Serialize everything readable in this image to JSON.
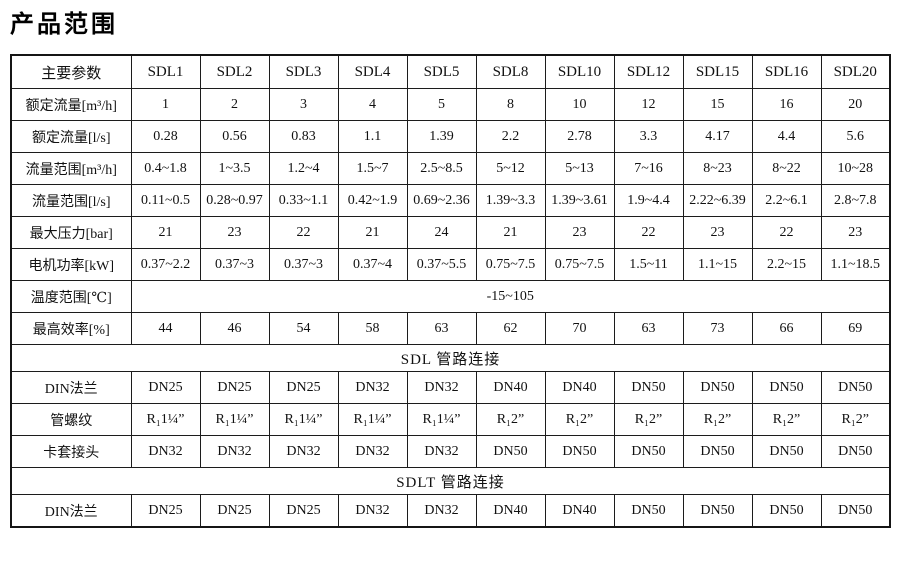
{
  "page_title": "产品范围",
  "table": {
    "rows": [
      {
        "type": "header",
        "label": "主要参数",
        "values": [
          "SDL1",
          "SDL2",
          "SDL3",
          "SDL4",
          "SDL5",
          "SDL8",
          "SDL10",
          "SDL12",
          "SDL15",
          "SDL16",
          "SDL20"
        ]
      },
      {
        "type": "data",
        "label": "额定流量[m³/h]",
        "values": [
          "1",
          "2",
          "3",
          "4",
          "5",
          "8",
          "10",
          "12",
          "15",
          "16",
          "20"
        ]
      },
      {
        "type": "data",
        "label": "额定流量[l/s]",
        "values": [
          "0.28",
          "0.56",
          "0.83",
          "1.1",
          "1.39",
          "2.2",
          "2.78",
          "3.3",
          "4.17",
          "4.4",
          "5.6"
        ]
      },
      {
        "type": "data",
        "label": "流量范围[m³/h]",
        "values": [
          "0.4~1.8",
          "1~3.5",
          "1.2~4",
          "1.5~7",
          "2.5~8.5",
          "5~12",
          "5~13",
          "7~16",
          "8~23",
          "8~22",
          "10~28"
        ]
      },
      {
        "type": "data",
        "label": "流量范围[l/s]",
        "values": [
          "0.11~0.5",
          "0.28~0.97",
          "0.33~1.1",
          "0.42~1.9",
          "0.69~2.36",
          "1.39~3.3",
          "1.39~3.61",
          "1.9~4.4",
          "2.22~6.39",
          "2.2~6.1",
          "2.8~7.8"
        ]
      },
      {
        "type": "data",
        "label": "最大压力[bar]",
        "values": [
          "21",
          "23",
          "22",
          "21",
          "24",
          "21",
          "23",
          "22",
          "23",
          "22",
          "23"
        ]
      },
      {
        "type": "data",
        "label": "电机功率[kW]",
        "values": [
          "0.37~2.2",
          "0.37~3",
          "0.37~3",
          "0.37~4",
          "0.37~5.5",
          "0.75~7.5",
          "0.75~7.5",
          "1.5~11",
          "1.1~15",
          "2.2~15",
          "1.1~18.5"
        ]
      },
      {
        "type": "merged",
        "label": "温度范围[℃]",
        "value": "-15~105"
      },
      {
        "type": "data",
        "label": "最高效率[%]",
        "values": [
          "44",
          "46",
          "54",
          "58",
          "63",
          "62",
          "70",
          "63",
          "73",
          "66",
          "69"
        ]
      },
      {
        "type": "section",
        "title": "SDL 管路连接"
      },
      {
        "type": "data",
        "label": "DIN法兰",
        "values": [
          "DN25",
          "DN25",
          "DN25",
          "DN32",
          "DN32",
          "DN40",
          "DN40",
          "DN50",
          "DN50",
          "DN50",
          "DN50"
        ]
      },
      {
        "type": "data",
        "label": "管螺纹",
        "values": [
          "R₁1¼”",
          "R₁1¼”",
          "R₁1¼”",
          "R₁1¼”",
          "R₁1¼”",
          "R₁2”",
          "R₁2”",
          "R₁2”",
          "R₁2”",
          "R₁2”",
          "R₁2”"
        ]
      },
      {
        "type": "data",
        "label": "卡套接头",
        "values": [
          "DN32",
          "DN32",
          "DN32",
          "DN32",
          "DN32",
          "DN50",
          "DN50",
          "DN50",
          "DN50",
          "DN50",
          "DN50"
        ]
      },
      {
        "type": "section",
        "title": "SDLT 管路连接"
      },
      {
        "type": "data",
        "label": "DIN法兰",
        "values": [
          "DN25",
          "DN25",
          "DN25",
          "DN32",
          "DN32",
          "DN40",
          "DN40",
          "DN50",
          "DN50",
          "DN50",
          "DN50"
        ]
      }
    ]
  }
}
